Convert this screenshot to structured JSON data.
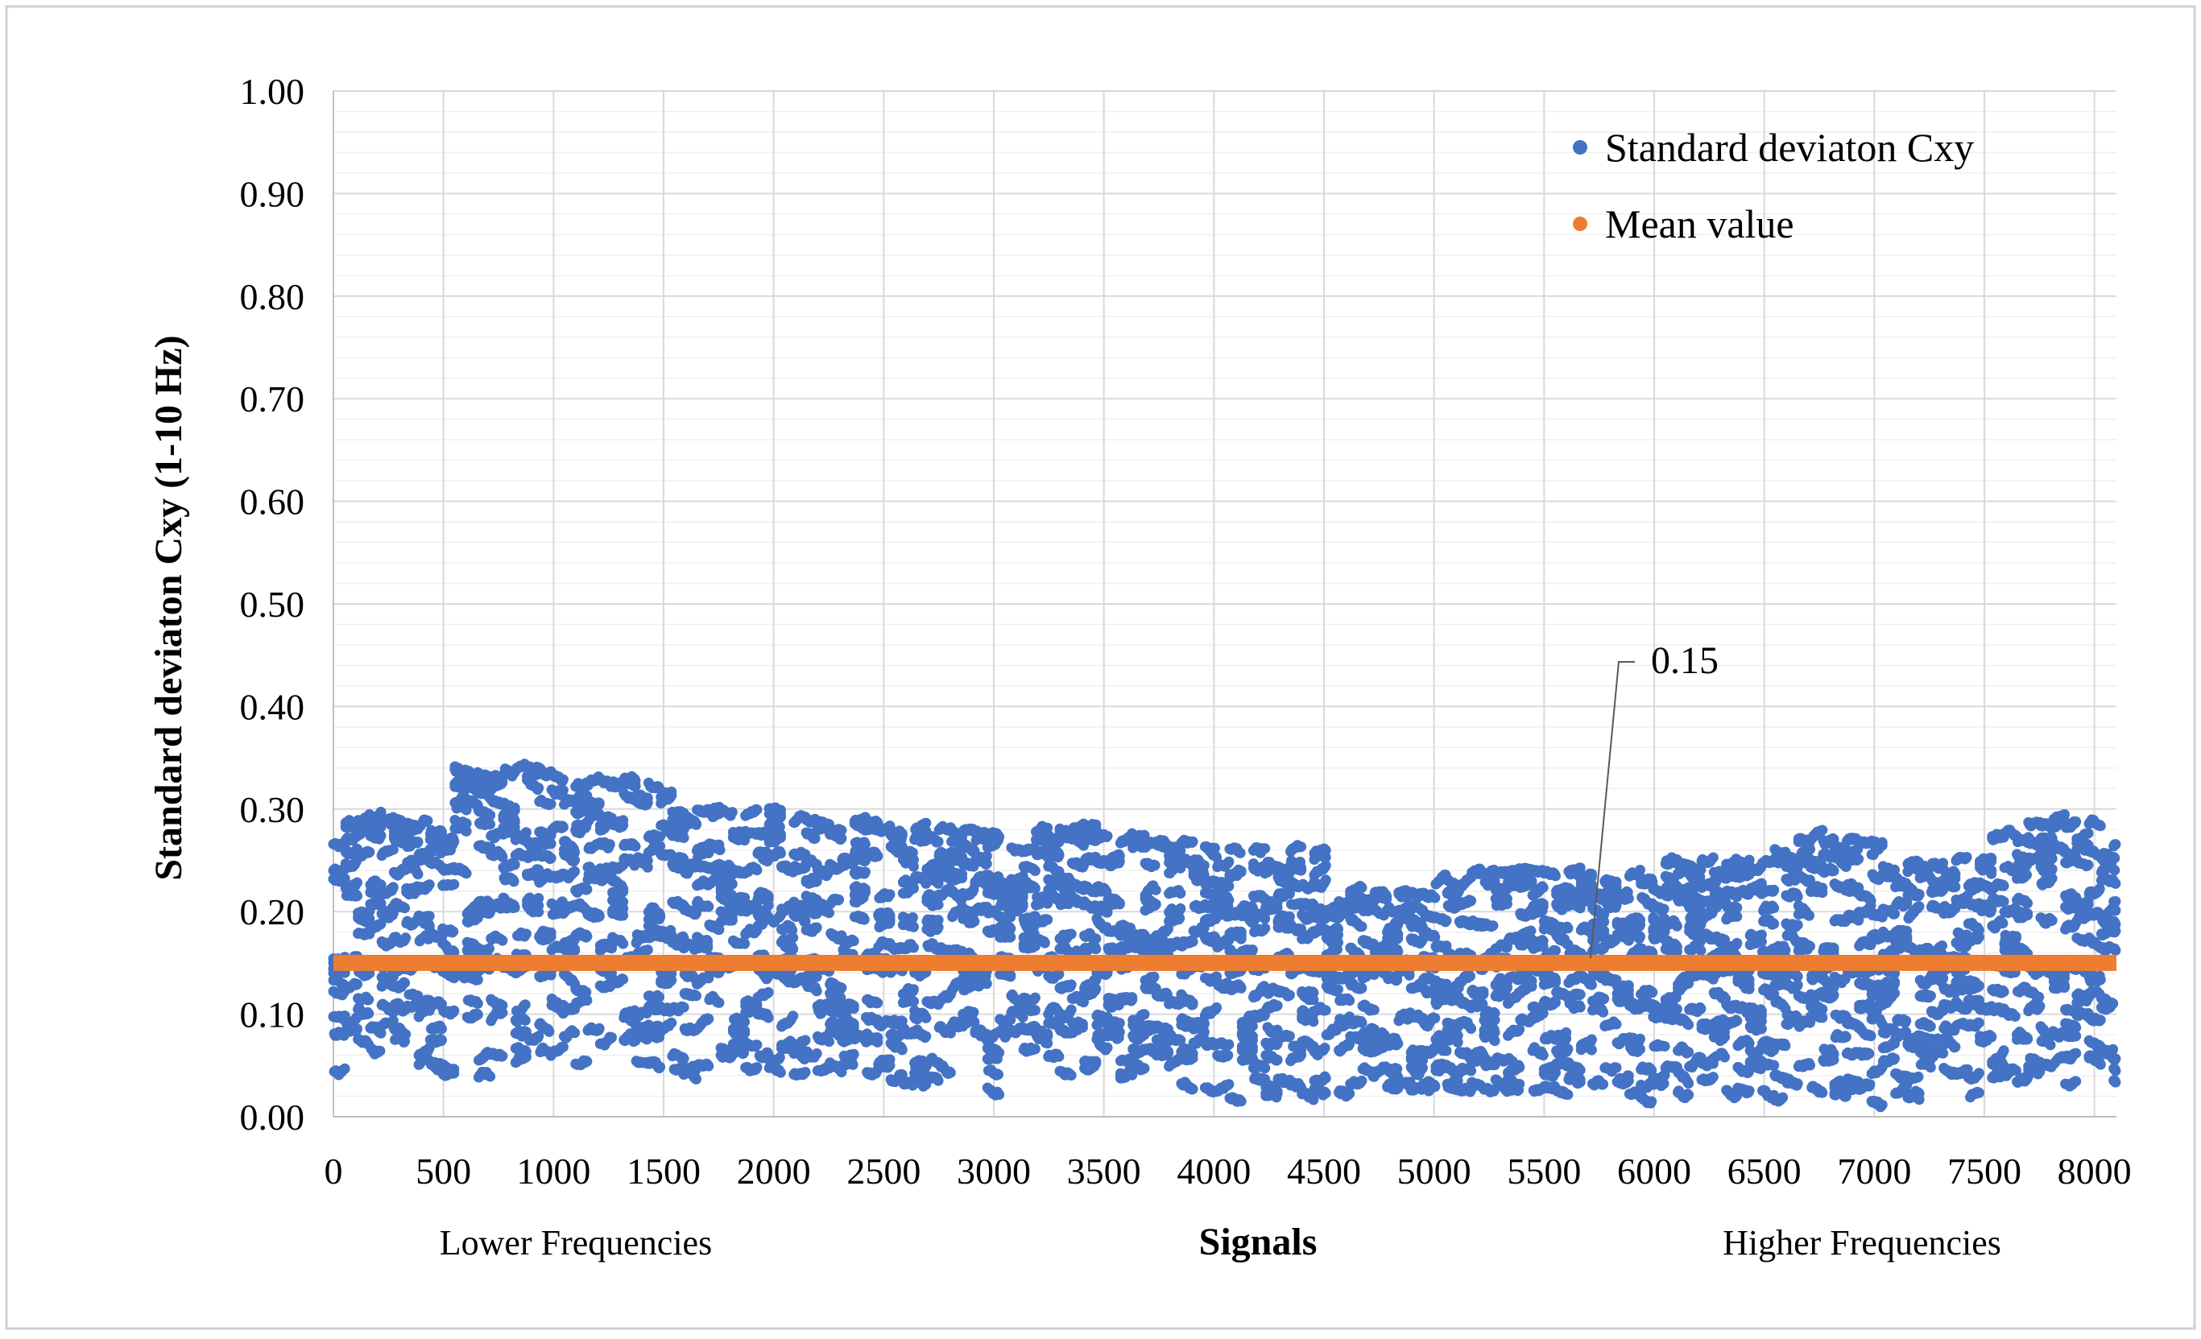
{
  "chart_data": {
    "type": "scatter",
    "xlabel": "Signals",
    "ylabel": "Standard deviaton  Cxy (1-10 Hz)",
    "x_sub_left": "Lower Frequencies",
    "x_sub_right": "Higher Frequencies",
    "xlim": [
      0,
      8100
    ],
    "ylim": [
      0,
      1.0
    ],
    "x_ticks": [
      "0",
      "500",
      "1000",
      "1500",
      "2000",
      "2500",
      "3000",
      "3500",
      "4000",
      "4500",
      "5000",
      "5500",
      "6000",
      "6500",
      "7000",
      "7500",
      "8000"
    ],
    "y_ticks": [
      "0.00",
      "0.10",
      "0.20",
      "0.30",
      "0.40",
      "0.50",
      "0.60",
      "0.70",
      "0.80",
      "0.90",
      "1.00"
    ],
    "grid": true,
    "legend_position": "top-right",
    "series": [
      {
        "name": "Standard deviaton  Cxy",
        "color": "#4472C4",
        "n_points": 8100,
        "range_by_signal_band": [
          {
            "x": [
              0,
              500
            ],
            "y_min": 0.04,
            "y_max": 0.29
          },
          {
            "x": [
              500,
              1000
            ],
            "y_min": 0.04,
            "y_max": 0.34
          },
          {
            "x": [
              1000,
              1500
            ],
            "y_min": 0.05,
            "y_max": 0.33
          },
          {
            "x": [
              1500,
              2000
            ],
            "y_min": 0.04,
            "y_max": 0.3
          },
          {
            "x": [
              2000,
              2500
            ],
            "y_min": 0.04,
            "y_max": 0.29
          },
          {
            "x": [
              2500,
              3000
            ],
            "y_min": 0.02,
            "y_max": 0.28
          },
          {
            "x": [
              3000,
              3500
            ],
            "y_min": 0.04,
            "y_max": 0.28
          },
          {
            "x": [
              3500,
              4000
            ],
            "y_min": 0.03,
            "y_max": 0.27
          },
          {
            "x": [
              4000,
              4500
            ],
            "y_min": 0.02,
            "y_max": 0.26
          },
          {
            "x": [
              4500,
              5000
            ],
            "y_min": 0.02,
            "y_max": 0.22
          },
          {
            "x": [
              5000,
              5500
            ],
            "y_min": 0.02,
            "y_max": 0.24
          },
          {
            "x": [
              5500,
              6000
            ],
            "y_min": 0.02,
            "y_max": 0.24
          },
          {
            "x": [
              6000,
              6500
            ],
            "y_min": 0.02,
            "y_max": 0.25
          },
          {
            "x": [
              6500,
              7000
            ],
            "y_min": 0.01,
            "y_max": 0.27
          },
          {
            "x": [
              7000,
              7500
            ],
            "y_min": 0.01,
            "y_max": 0.25
          },
          {
            "x": [
              7500,
              8100
            ],
            "y_min": 0.03,
            "y_max": 0.29
          }
        ]
      },
      {
        "name": "Mean value",
        "color": "#ED7D31",
        "x": [
          0,
          8100
        ],
        "y": [
          0.15,
          0.15
        ]
      }
    ],
    "annotations": [
      {
        "text": "0.15",
        "x": 5750,
        "y": 0.15
      }
    ]
  }
}
